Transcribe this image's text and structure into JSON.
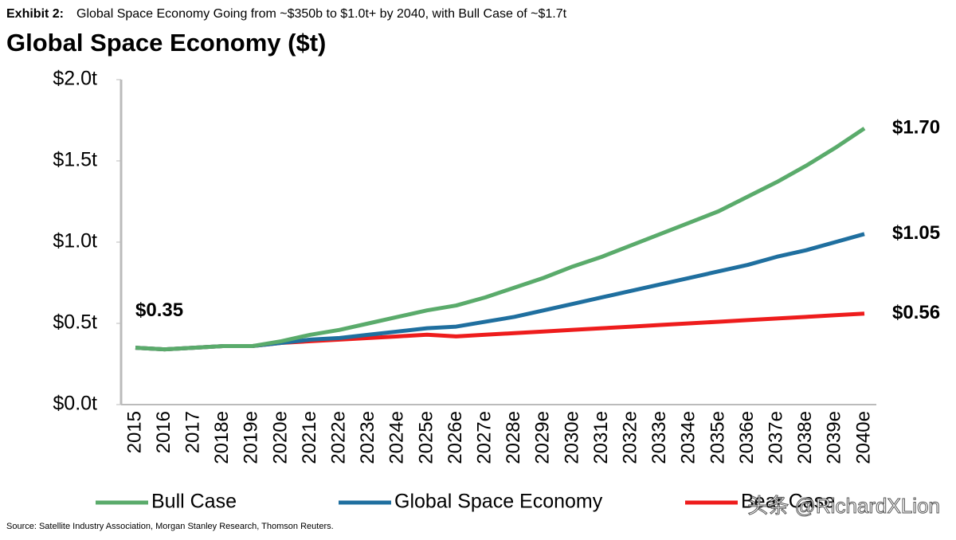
{
  "chart_data": {
    "type": "line",
    "exhibit_label": "Exhibit 2:",
    "subtitle": "Global Space Economy Going from ~$350b to $1.0t+ by 2040, with Bull Case of ~$1.7t",
    "title": "Global Space Economy ($t)",
    "source": "Source: Satellite Industry Association, Morgan Stanley Research, Thomson Reuters.",
    "watermark": "头条 @RichardXLion",
    "categories": [
      "2015",
      "2016",
      "2017",
      "2018e",
      "2019e",
      "2020e",
      "2021e",
      "2022e",
      "2023e",
      "2024e",
      "2025e",
      "2026e",
      "2027e",
      "2028e",
      "2029e",
      "2030e",
      "2031e",
      "2032e",
      "2033e",
      "2034e",
      "2035e",
      "2036e",
      "2037e",
      "2038e",
      "2039e",
      "2040e"
    ],
    "ylim": [
      0,
      2
    ],
    "yticks": [
      {
        "value": 0,
        "label": "$0.0t"
      },
      {
        "value": 0.5,
        "label": "$0.5t"
      },
      {
        "value": 1,
        "label": "$1.0t"
      },
      {
        "value": 1.5,
        "label": "$1.5t"
      },
      {
        "value": 2,
        "label": "$2.0t"
      }
    ],
    "series": [
      {
        "name": "Bull Case",
        "color": "#5aab6b",
        "values": [
          0.35,
          0.34,
          0.35,
          0.36,
          0.36,
          0.39,
          0.43,
          0.46,
          0.5,
          0.54,
          0.58,
          0.61,
          0.66,
          0.72,
          0.78,
          0.85,
          0.91,
          0.98,
          1.05,
          1.12,
          1.19,
          1.28,
          1.37,
          1.47,
          1.58,
          1.7
        ],
        "value_labels": [
          null,
          null,
          null,
          null,
          null,
          null,
          null,
          null,
          null,
          null,
          null,
          null,
          null,
          null,
          null,
          null,
          null,
          null,
          null,
          null,
          null,
          null,
          null,
          null,
          null,
          "$1.70"
        ]
      },
      {
        "name": "Global Space Economy",
        "color": "#1f6f9f",
        "values": [
          0.35,
          0.34,
          0.35,
          0.36,
          0.36,
          0.38,
          0.4,
          0.41,
          0.43,
          0.45,
          0.47,
          0.48,
          0.51,
          0.54,
          0.58,
          0.62,
          0.66,
          0.7,
          0.74,
          0.78,
          0.82,
          0.86,
          0.91,
          0.95,
          1.0,
          1.05
        ],
        "value_labels": [
          "$0.35",
          null,
          null,
          null,
          null,
          null,
          null,
          null,
          null,
          null,
          null,
          null,
          null,
          null,
          null,
          null,
          null,
          null,
          null,
          null,
          null,
          null,
          null,
          null,
          null,
          "$1.05"
        ]
      },
      {
        "name": "Bear Case",
        "color": "#ee1c1c",
        "values": [
          0.35,
          0.34,
          0.35,
          0.36,
          0.36,
          0.38,
          0.39,
          0.4,
          0.41,
          0.42,
          0.43,
          0.42,
          0.43,
          0.44,
          0.45,
          0.46,
          0.47,
          0.48,
          0.49,
          0.5,
          0.51,
          0.52,
          0.53,
          0.54,
          0.55,
          0.56
        ],
        "value_labels": [
          null,
          null,
          null,
          null,
          null,
          null,
          null,
          null,
          null,
          null,
          null,
          null,
          null,
          null,
          null,
          null,
          null,
          null,
          null,
          null,
          null,
          null,
          null,
          null,
          null,
          "$0.56"
        ]
      }
    ]
  }
}
